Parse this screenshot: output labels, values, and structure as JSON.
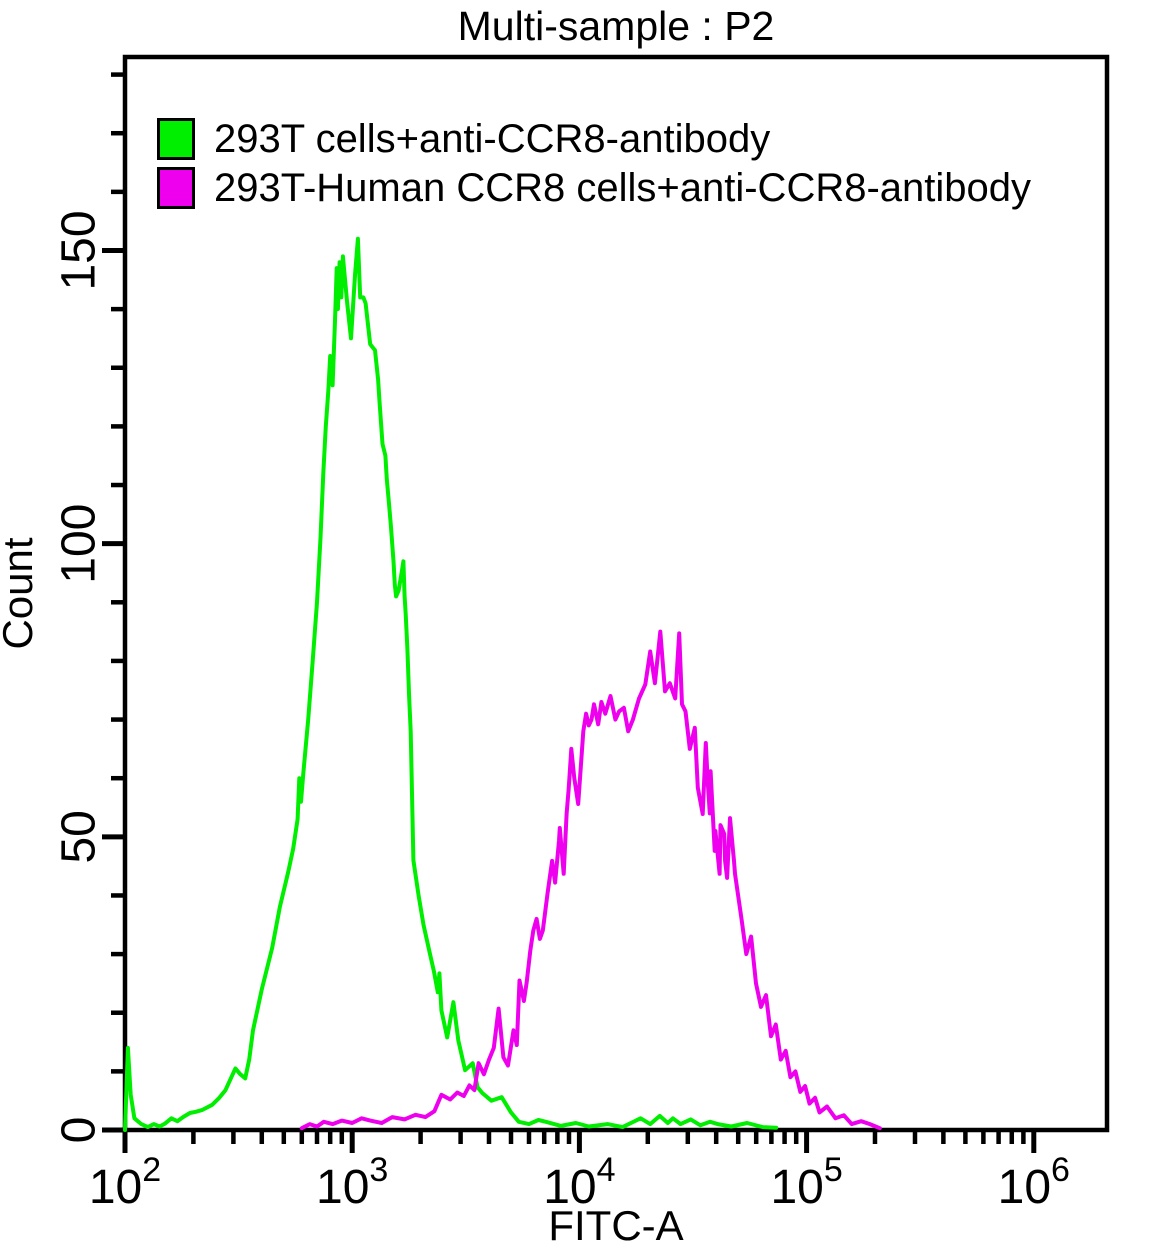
{
  "title": "Multi-sample : P2",
  "legend": {
    "items": [
      {
        "label": "293T cells+anti-CCR8-antibody",
        "color": "#00ee00"
      },
      {
        "label": "293T-Human CCR8 cells+anti-CCR8-antibody",
        "color": "#ee00ee"
      }
    ]
  },
  "chart_data": {
    "type": "line",
    "subtype": "flow-cytometry-histogram-overlay",
    "title": "Multi-sample : P2",
    "xlabel": "FITC-A",
    "ylabel": "Count",
    "x_scale": "log",
    "xlim": [
      100,
      2100000
    ],
    "ylim": [
      0,
      183
    ],
    "grid": false,
    "legend_position": "top-left",
    "axis_color": "#000000",
    "x_ticks": [
      {
        "value": 100,
        "base": "10",
        "exp": "2"
      },
      {
        "value": 1000,
        "base": "10",
        "exp": "3"
      },
      {
        "value": 10000,
        "base": "10",
        "exp": "4"
      },
      {
        "value": 100000,
        "base": "10",
        "exp": "5"
      },
      {
        "value": 1000000,
        "base": "10",
        "exp": "6"
      }
    ],
    "x_minor_multiples": [
      2,
      3,
      4,
      5,
      6,
      7,
      8,
      9
    ],
    "y_ticks": [
      0,
      50,
      100,
      150
    ],
    "y_minor_step": 10,
    "series": [
      {
        "name": "293T cells+anti-CCR8-antibody",
        "color": "#00ee00",
        "peak": {
          "x": 1060,
          "y": 152
        },
        "points": [
          [
            100,
            0
          ],
          [
            103,
            14
          ],
          [
            106,
            6
          ],
          [
            110,
            2
          ],
          [
            118,
            1
          ],
          [
            126,
            0.5
          ],
          [
            134,
            1
          ],
          [
            142,
            0.6
          ],
          [
            150,
            1.1
          ],
          [
            160,
            2
          ],
          [
            170,
            1.5
          ],
          [
            180,
            2.2
          ],
          [
            193,
            2.9
          ],
          [
            205,
            3.1
          ],
          [
            218,
            3.4
          ],
          [
            242,
            4.3
          ],
          [
            260,
            5.5
          ],
          [
            277,
            6.8
          ],
          [
            306,
            10.5
          ],
          [
            320,
            9.6
          ],
          [
            338,
            8.8
          ],
          [
            352,
            12
          ],
          [
            366,
            17
          ],
          [
            400,
            24
          ],
          [
            444,
            31
          ],
          [
            480,
            38
          ],
          [
            523,
            44
          ],
          [
            550,
            48
          ],
          [
            575,
            53
          ],
          [
            585,
            60
          ],
          [
            595,
            56
          ],
          [
            610,
            61
          ],
          [
            640,
            70
          ],
          [
            670,
            80
          ],
          [
            700,
            90
          ],
          [
            725,
            101
          ],
          [
            746,
            112
          ],
          [
            765,
            120
          ],
          [
            785,
            126
          ],
          [
            800,
            132
          ],
          [
            820,
            127
          ],
          [
            840,
            138
          ],
          [
            855,
            147
          ],
          [
            865,
            140
          ],
          [
            880,
            148
          ],
          [
            895,
            142
          ],
          [
            910,
            149
          ],
          [
            951,
            141
          ],
          [
            988,
            135
          ],
          [
            1030,
            146
          ],
          [
            1060,
            152
          ],
          [
            1085,
            142
          ],
          [
            1120,
            142
          ],
          [
            1145,
            141
          ],
          [
            1200,
            134
          ],
          [
            1260,
            133
          ],
          [
            1300,
            128
          ],
          [
            1320,
            124
          ],
          [
            1360,
            117
          ],
          [
            1400,
            115
          ],
          [
            1420,
            111
          ],
          [
            1450,
            107
          ],
          [
            1480,
            103
          ],
          [
            1520,
            97
          ],
          [
            1540,
            93
          ],
          [
            1560,
            91
          ],
          [
            1600,
            92
          ],
          [
            1650,
            95
          ],
          [
            1680,
            97
          ],
          [
            1700,
            91
          ],
          [
            1720,
            88
          ],
          [
            1750,
            82
          ],
          [
            1780,
            74
          ],
          [
            1810,
            68
          ],
          [
            1860,
            46
          ],
          [
            1960,
            40
          ],
          [
            2060,
            35
          ],
          [
            2200,
            30
          ],
          [
            2290,
            27
          ],
          [
            2380,
            23.5
          ],
          [
            2420,
            26.7
          ],
          [
            2470,
            20.4
          ],
          [
            2620,
            15.8
          ],
          [
            2790,
            21.8
          ],
          [
            2930,
            15.3
          ],
          [
            3140,
            10.2
          ],
          [
            3390,
            11.4
          ],
          [
            3560,
            7.3
          ],
          [
            3740,
            6.3
          ],
          [
            4100,
            5
          ],
          [
            4550,
            5.6
          ],
          [
            5000,
            3
          ],
          [
            5410,
            1.4
          ],
          [
            6000,
            1
          ],
          [
            6600,
            1.7
          ],
          [
            7120,
            1.4
          ],
          [
            8290,
            0.7
          ],
          [
            9650,
            1.2
          ],
          [
            11000,
            0.6
          ],
          [
            13300,
            1
          ],
          [
            15500,
            0.5
          ],
          [
            18600,
            2
          ],
          [
            20500,
            1
          ],
          [
            22600,
            2.4
          ],
          [
            24500,
            1.2
          ],
          [
            25800,
            2
          ],
          [
            27900,
            1
          ],
          [
            30900,
            1.8
          ],
          [
            34100,
            0.8
          ],
          [
            37600,
            1.4
          ],
          [
            40600,
            1
          ],
          [
            46600,
            0.6
          ],
          [
            54700,
            1.2
          ],
          [
            64100,
            0.5
          ],
          [
            73500,
            0.4
          ]
        ]
      },
      {
        "name": "293T-Human CCR8 cells+anti-CCR8-antibody",
        "color": "#ee00ee",
        "peak": {
          "x": 22700,
          "y": 85
        },
        "points": [
          [
            600,
            0.3
          ],
          [
            650,
            1
          ],
          [
            700,
            0.6
          ],
          [
            750,
            1.4
          ],
          [
            820,
            1
          ],
          [
            900,
            1.6
          ],
          [
            1000,
            1.2
          ],
          [
            1100,
            2
          ],
          [
            1200,
            1.6
          ],
          [
            1350,
            1.2
          ],
          [
            1500,
            2.2
          ],
          [
            1700,
            1.8
          ],
          [
            1900,
            2.6
          ],
          [
            2100,
            2.2
          ],
          [
            2300,
            3.2
          ],
          [
            2470,
            6
          ],
          [
            2700,
            5.2
          ],
          [
            2900,
            6.4
          ],
          [
            3100,
            5.8
          ],
          [
            3280,
            7.6
          ],
          [
            3450,
            6.8
          ],
          [
            3600,
            11.4
          ],
          [
            3800,
            9.5
          ],
          [
            4000,
            12
          ],
          [
            4200,
            14
          ],
          [
            4410,
            20.7
          ],
          [
            4630,
            12.4
          ],
          [
            4850,
            11
          ],
          [
            5130,
            17
          ],
          [
            5300,
            14.5
          ],
          [
            5450,
            25.5
          ],
          [
            5700,
            22
          ],
          [
            5860,
            25.2
          ],
          [
            6080,
            30.6
          ],
          [
            6270,
            34
          ],
          [
            6480,
            36
          ],
          [
            6700,
            32.6
          ],
          [
            6900,
            34
          ],
          [
            7240,
            40.3
          ],
          [
            7580,
            45.9
          ],
          [
            7820,
            42.2
          ],
          [
            8130,
            49.3
          ],
          [
            8200,
            51.5
          ],
          [
            8530,
            43.7
          ],
          [
            8780,
            53.9
          ],
          [
            8950,
            57.8
          ],
          [
            9040,
            60
          ],
          [
            9210,
            65
          ],
          [
            9500,
            60
          ],
          [
            9880,
            55.6
          ],
          [
            10400,
            68
          ],
          [
            10700,
            71
          ],
          [
            11000,
            69
          ],
          [
            11300,
            70
          ],
          [
            11600,
            72.6
          ],
          [
            12100,
            69.2
          ],
          [
            12500,
            73
          ],
          [
            13000,
            71
          ],
          [
            13700,
            74
          ],
          [
            14400,
            70
          ],
          [
            14950,
            71.4
          ],
          [
            15700,
            72
          ],
          [
            16400,
            68
          ],
          [
            17200,
            70
          ],
          [
            18300,
            73.6
          ],
          [
            19500,
            76
          ],
          [
            20500,
            81.6
          ],
          [
            21500,
            76.2
          ],
          [
            22700,
            85
          ],
          [
            23800,
            74.8
          ],
          [
            25000,
            76.2
          ],
          [
            26400,
            73.6
          ],
          [
            27500,
            84.7
          ],
          [
            28300,
            72.6
          ],
          [
            29300,
            71.4
          ],
          [
            30600,
            65
          ],
          [
            32200,
            68.6
          ],
          [
            33200,
            58.4
          ],
          [
            34900,
            53.9
          ],
          [
            36000,
            66
          ],
          [
            36700,
            59.5
          ],
          [
            37500,
            54
          ],
          [
            37800,
            61.2
          ],
          [
            39400,
            47.6
          ],
          [
            39700,
            51
          ],
          [
            41400,
            43.7
          ],
          [
            41800,
            52
          ],
          [
            43400,
            50.5
          ],
          [
            43800,
            45.9
          ],
          [
            44700,
            43
          ],
          [
            46000,
            53.2
          ],
          [
            47900,
            45.9
          ],
          [
            48400,
            43.7
          ],
          [
            51700,
            36
          ],
          [
            54300,
            30
          ],
          [
            57000,
            33
          ],
          [
            59900,
            25
          ],
          [
            63000,
            21
          ],
          [
            66300,
            23
          ],
          [
            69700,
            16
          ],
          [
            73200,
            18
          ],
          [
            77000,
            12
          ],
          [
            80900,
            13.5
          ],
          [
            84900,
            9
          ],
          [
            89300,
            10
          ],
          [
            93800,
            6.5
          ],
          [
            98500,
            7.5
          ],
          [
            103000,
            4.5
          ],
          [
            109000,
            5.5
          ],
          [
            114000,
            3
          ],
          [
            123000,
            4
          ],
          [
            134000,
            2
          ],
          [
            146000,
            2.5
          ],
          [
            158000,
            1
          ],
          [
            174000,
            1.5
          ],
          [
            190000,
            1
          ],
          [
            210000,
            0.3
          ]
        ]
      }
    ]
  }
}
